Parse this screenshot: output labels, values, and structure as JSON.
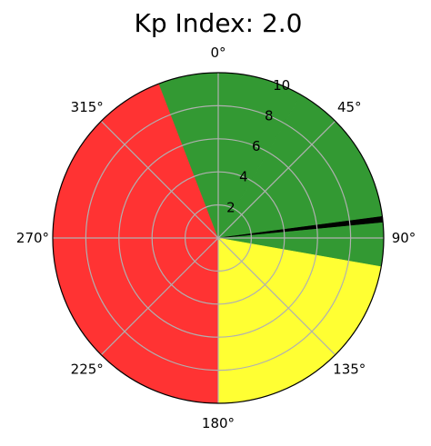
{
  "chart_data": {
    "type": "polar-bar",
    "title": "Kp Index: 2.0",
    "theta_direction": "clockwise",
    "theta_zero": "top",
    "theta_ticks": [
      "0°",
      "45°",
      "90°",
      "135°",
      "180°",
      "225°",
      "270°",
      "315°"
    ],
    "theta_tick_degrees": [
      0,
      45,
      90,
      135,
      180,
      225,
      270,
      315
    ],
    "r_ticks": [
      "2",
      "4",
      "6",
      "8",
      "10"
    ],
    "r_tick_values": [
      2,
      4,
      6,
      8,
      10
    ],
    "r_label_angle_deg": 22.5,
    "rlim": [
      0,
      10
    ],
    "grid": true,
    "sectors": [
      {
        "start_deg": 0,
        "end_deg": 30,
        "r": 10,
        "color": "#339933"
      },
      {
        "start_deg": 30,
        "end_deg": 100,
        "r": 10,
        "color": "#339933"
      },
      {
        "start_deg": 100,
        "end_deg": 180,
        "r": 10,
        "color": "#ffff33"
      },
      {
        "start_deg": 180,
        "end_deg": 339,
        "r": 10,
        "color": "#ff3333"
      },
      {
        "start_deg": 339,
        "end_deg": 360,
        "r": 10,
        "color": "#339933"
      },
      {
        "start_deg": 82.5,
        "end_deg": 84.5,
        "r": 10,
        "color": "#000000"
      }
    ]
  }
}
